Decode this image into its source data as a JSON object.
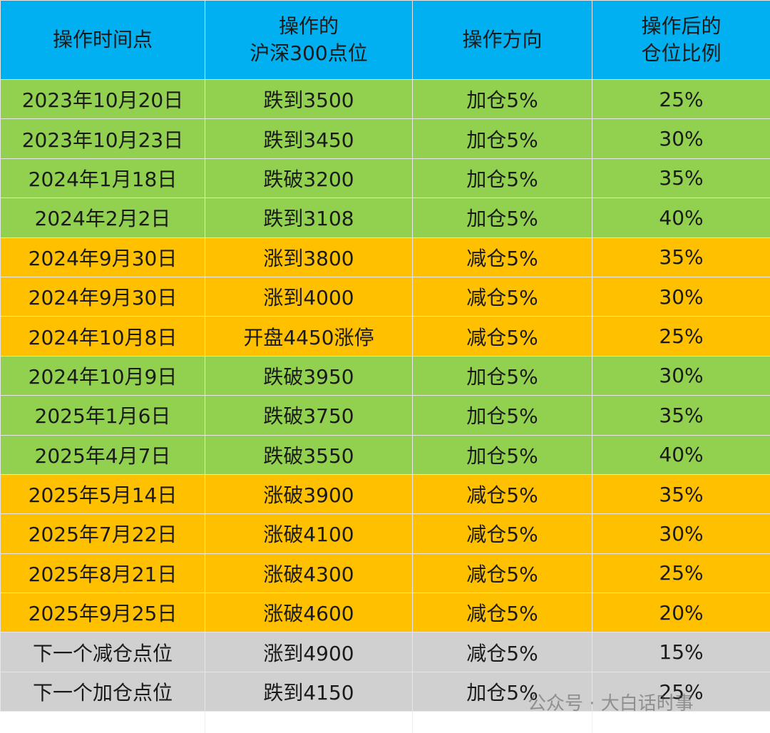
{
  "table": {
    "header": [
      "操作时间点",
      "操作的\n沪深300点位",
      "操作方向",
      "操作后的\n仓位比例"
    ],
    "header_color": "#00b0f0",
    "rows": [
      {
        "cells": [
          "2023年10月20日",
          "跌到3500",
          "加仓5%",
          "25%"
        ],
        "color": "#92d050"
      },
      {
        "cells": [
          "2023年10月23日",
          "跌到3450",
          "加仓5%",
          "30%"
        ],
        "color": "#92d050"
      },
      {
        "cells": [
          "2024年1月18日",
          "跌破3200",
          "加仓5%",
          "35%"
        ],
        "color": "#92d050"
      },
      {
        "cells": [
          "2024年2月2日",
          "跌到3108",
          "加仓5%",
          "40%"
        ],
        "color": "#92d050"
      },
      {
        "cells": [
          "2024年9月30日",
          "涨到3800",
          "减仓5%",
          "35%"
        ],
        "color": "#ffc000"
      },
      {
        "cells": [
          "2024年9月30日",
          "涨到4000",
          "减仓5%",
          "30%"
        ],
        "color": "#ffc000"
      },
      {
        "cells": [
          "2024年10月8日",
          "开盘4450涨停",
          "减仓5%",
          "25%"
        ],
        "color": "#ffc000"
      },
      {
        "cells": [
          "2024年10月9日",
          "跌破3950",
          "加仓5%",
          "30%"
        ],
        "color": "#92d050"
      },
      {
        "cells": [
          "2025年1月6日",
          "跌破3750",
          "加仓5%",
          "35%"
        ],
        "color": "#92d050"
      },
      {
        "cells": [
          "2025年4月7日",
          "跌破3550",
          "加仓5%",
          "40%"
        ],
        "color": "#92d050"
      },
      {
        "cells": [
          "2025年5月14日",
          "涨破3900",
          "减仓5%",
          "35%"
        ],
        "color": "#ffc000"
      },
      {
        "cells": [
          "2025年7月22日",
          "涨破4100",
          "减仓5%",
          "30%"
        ],
        "color": "#ffc000"
      },
      {
        "cells": [
          "2025年8月21日",
          "涨破4300",
          "减仓5%",
          "25%"
        ],
        "color": "#ffc000"
      },
      {
        "cells": [
          "2025年9月25日",
          "涨破4600",
          "减仓5%",
          "20%"
        ],
        "color": "#ffc000"
      },
      {
        "cells": [
          "下一个减仓点位",
          "涨到4900",
          "减仓5%",
          "15%"
        ],
        "color": "#d0d0d0"
      },
      {
        "cells": [
          "下一个加仓点位",
          "跌到4150",
          "加仓5%",
          "25%"
        ],
        "color": "#d0d0d0"
      }
    ]
  },
  "watermark": "公众号 · 大白话时事"
}
